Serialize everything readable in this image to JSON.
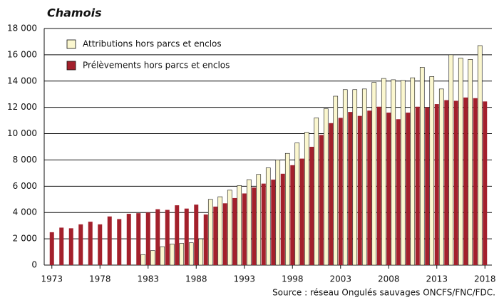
{
  "chart_data": {
    "type": "bar",
    "title": "Chamois",
    "source": "Source : réseau Ongulés sauvages ONCFS/FNC/FDC.",
    "categories": [
      "1973",
      null,
      null,
      null,
      null,
      "1978",
      null,
      null,
      null,
      null,
      "1983",
      null,
      null,
      null,
      null,
      "1988",
      null,
      null,
      null,
      null,
      "1993",
      null,
      null,
      null,
      null,
      "1998",
      null,
      null,
      null,
      null,
      "2003",
      null,
      null,
      null,
      null,
      "2008",
      null,
      null,
      null,
      null,
      "2013",
      null,
      null,
      null,
      null,
      "2018"
    ],
    "series": [
      {
        "name": "Attributions hors parcs et enclos",
        "color": "#fbf7cf",
        "values": [
          null,
          null,
          null,
          null,
          null,
          null,
          null,
          null,
          null,
          null,
          800,
          1100,
          1400,
          1600,
          1650,
          1700,
          2000,
          5000,
          5200,
          5700,
          6050,
          6500,
          6900,
          7400,
          8000,
          8500,
          9300,
          10100,
          11200,
          11900,
          12850,
          13350,
          13350,
          13400,
          13900,
          14200,
          14100,
          14050,
          14250,
          15050,
          14350,
          13400,
          16000,
          15750,
          15650,
          16700
        ]
      },
      {
        "name": "Prélèvements hors parcs et enclos",
        "color": "#a3202c",
        "values": [
          2500,
          2850,
          2800,
          3100,
          3300,
          3100,
          3700,
          3500,
          3900,
          3950,
          4000,
          4250,
          4200,
          4550,
          4300,
          4600,
          3850,
          4450,
          4700,
          5100,
          5450,
          5900,
          6200,
          6500,
          6950,
          7600,
          8100,
          9000,
          9900,
          10800,
          11200,
          11650,
          11350,
          11750,
          12050,
          11600,
          11100,
          11600,
          12050,
          12000,
          12250,
          12550,
          12500,
          12750,
          12700,
          12450
        ]
      }
    ],
    "ylim": [
      0,
      18000
    ],
    "yticks": [
      0,
      {
        "value": 2000,
        "label": "2 000"
      },
      {
        "value": 4000,
        "label": "4 000"
      },
      {
        "value": 6000,
        "label": "6 000"
      },
      {
        "value": 8000,
        "label": "8 000"
      },
      {
        "value": 10000,
        "label": "10 000"
      },
      {
        "value": 12000,
        "label": "12 000"
      },
      {
        "value": 14000,
        "label": "14 000"
      },
      {
        "value": 16000,
        "label": "16 000"
      },
      {
        "value": 18000,
        "label": "18 000"
      }
    ],
    "grid": true,
    "legend": "top-left"
  }
}
